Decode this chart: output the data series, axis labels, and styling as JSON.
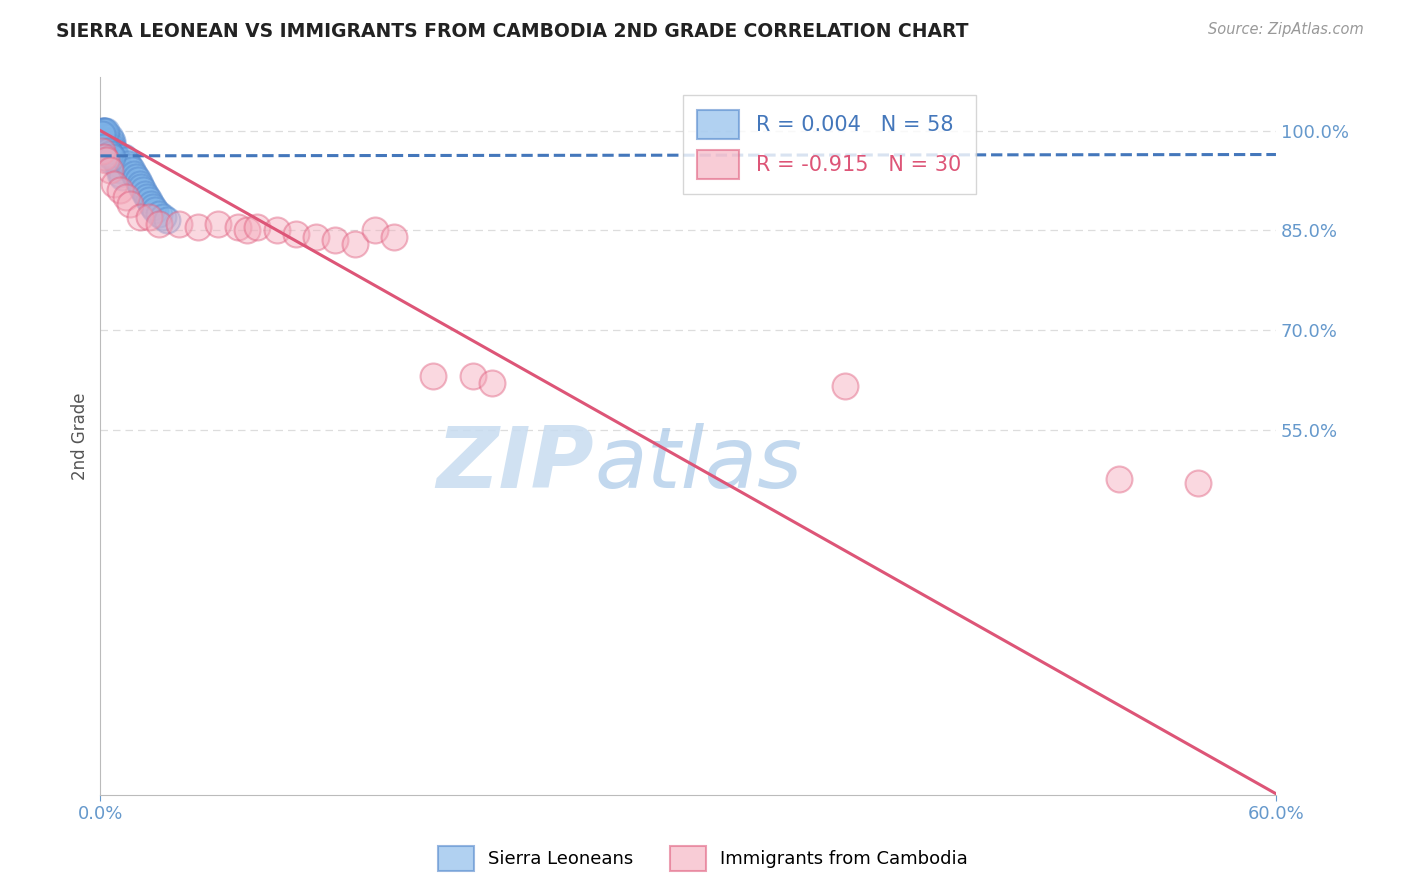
{
  "title": "SIERRA LEONEAN VS IMMIGRANTS FROM CAMBODIA 2ND GRADE CORRELATION CHART",
  "source": "Source: ZipAtlas.com",
  "ylabel": "2nd Grade",
  "xlim": [
    0.0,
    0.6
  ],
  "ylim": [
    0.0,
    1.08
  ],
  "yticks": [
    0.55,
    0.7,
    0.85,
    1.0
  ],
  "ytick_labels": [
    "55.0%",
    "70.0%",
    "85.0%",
    "100.0%"
  ],
  "blue_R": 0.004,
  "blue_N": 58,
  "pink_R": -0.915,
  "pink_N": 30,
  "blue_color": "#7EB3E8",
  "pink_color": "#F4AABB",
  "blue_edge_color": "#5588CC",
  "pink_edge_color": "#E06080",
  "blue_line_color": "#4477BB",
  "pink_line_color": "#DD5577",
  "grid_color": "#DDDDDD",
  "title_color": "#222222",
  "axis_label_color": "#555555",
  "tick_color": "#6699CC",
  "blue_scatter_x": [
    0.0,
    0.001,
    0.001,
    0.001,
    0.002,
    0.002,
    0.002,
    0.002,
    0.003,
    0.003,
    0.003,
    0.003,
    0.004,
    0.004,
    0.004,
    0.005,
    0.005,
    0.005,
    0.006,
    0.006,
    0.006,
    0.007,
    0.007,
    0.008,
    0.008,
    0.009,
    0.009,
    0.01,
    0.01,
    0.011,
    0.012,
    0.013,
    0.014,
    0.015,
    0.016,
    0.017,
    0.018,
    0.019,
    0.02,
    0.021,
    0.022,
    0.023,
    0.024,
    0.025,
    0.026,
    0.027,
    0.028,
    0.03,
    0.032,
    0.034,
    0.001,
    0.002,
    0.003,
    0.001,
    0.002,
    0.004,
    0.005,
    0.006
  ],
  "blue_scatter_y": [
    0.97,
    0.975,
    0.98,
    0.985,
    0.99,
    0.995,
    1.0,
    1.0,
    0.995,
    0.99,
    0.985,
    0.98,
    0.975,
    0.97,
    0.965,
    0.96,
    0.955,
    0.99,
    0.985,
    0.98,
    0.975,
    0.97,
    0.965,
    0.96,
    0.955,
    0.95,
    0.945,
    0.94,
    0.935,
    0.93,
    0.96,
    0.955,
    0.95,
    0.945,
    0.94,
    0.935,
    0.93,
    0.925,
    0.92,
    0.915,
    0.91,
    0.905,
    0.9,
    0.895,
    0.89,
    0.885,
    0.88,
    0.875,
    0.87,
    0.865,
    1.0,
    1.0,
    1.0,
    0.995,
    0.975,
    0.97,
    0.965,
    0.96
  ],
  "pink_scatter_x": [
    0.001,
    0.002,
    0.003,
    0.005,
    0.007,
    0.01,
    0.013,
    0.015,
    0.02,
    0.025,
    0.03,
    0.04,
    0.05,
    0.06,
    0.07,
    0.075,
    0.08,
    0.09,
    0.1,
    0.11,
    0.12,
    0.13,
    0.14,
    0.15,
    0.17,
    0.19,
    0.2,
    0.38,
    0.52,
    0.56
  ],
  "pink_scatter_y": [
    0.97,
    0.96,
    0.955,
    0.94,
    0.92,
    0.91,
    0.9,
    0.89,
    0.87,
    0.87,
    0.86,
    0.86,
    0.855,
    0.86,
    0.855,
    0.85,
    0.855,
    0.85,
    0.845,
    0.84,
    0.835,
    0.83,
    0.85,
    0.84,
    0.63,
    0.63,
    0.62,
    0.615,
    0.475,
    0.47
  ],
  "blue_line_y0": 0.962,
  "blue_line_y1": 0.964,
  "pink_line_y0": 1.0,
  "pink_line_y1": 0.002,
  "watermark_zip": "ZIP",
  "watermark_atlas": "atlas",
  "figsize": [
    14.06,
    8.92
  ],
  "dpi": 100
}
